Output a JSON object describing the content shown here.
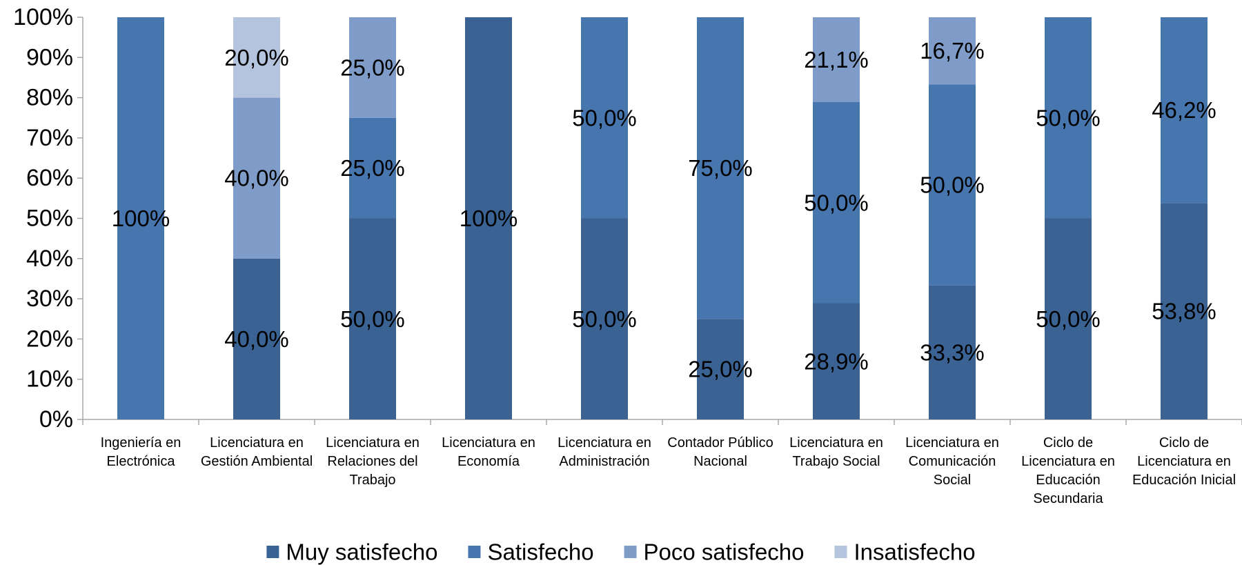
{
  "chart_data": {
    "type": "bar",
    "stacked": true,
    "percent_stacked": true,
    "categories": [
      [
        "Ingeniería en",
        "Electrónica"
      ],
      [
        "Licenciatura en",
        "Gestión Ambiental"
      ],
      [
        "Licenciatura en",
        "Relaciones del",
        "Trabajo"
      ],
      [
        "Licenciatura en",
        "Economía"
      ],
      [
        "Licenciatura en",
        "Administración"
      ],
      [
        "Contador Público",
        "Nacional"
      ],
      [
        "Licenciatura en",
        "Trabajo Social"
      ],
      [
        "Licenciatura en",
        "Comunicación",
        "Social"
      ],
      [
        "Ciclo de",
        "Licenciatura en",
        "Educación",
        "Secundaria"
      ],
      [
        "Ciclo de",
        "Licenciatura en",
        "Educación Inicial"
      ]
    ],
    "series": [
      {
        "name": "Muy satisfecho",
        "color": "#3A6394",
        "values": [
          0,
          40.0,
          50.0,
          100,
          50.0,
          25.0,
          28.9,
          33.3,
          50.0,
          53.8
        ],
        "labels": [
          "",
          "40,0%",
          "50,0%",
          "100%",
          "50,0%",
          "25,0%",
          "28,9%",
          "33,3%",
          "50,0%",
          "53,8%"
        ]
      },
      {
        "name": "Satisfecho",
        "color": "#4775AD",
        "values": [
          100,
          0,
          25.0,
          0,
          50.0,
          75.0,
          50.0,
          50.0,
          50.0,
          46.2
        ],
        "labels": [
          "100%",
          "",
          "25,0%",
          "",
          "50,0%",
          "75,0%",
          "50,0%",
          "50,0%",
          "50,0%",
          "46,2%"
        ]
      },
      {
        "name": "Poco satisfecho",
        "color": "#7F9CC9",
        "values": [
          0,
          40.0,
          25.0,
          0,
          0,
          0,
          21.1,
          16.7,
          0,
          0
        ],
        "labels": [
          "",
          "40,0%",
          "25,0%",
          "",
          "",
          "",
          "21,1%",
          "16,7%",
          "",
          ""
        ]
      },
      {
        "name": "Insatisfecho",
        "color": "#B4C3DE",
        "values": [
          0,
          20.0,
          0,
          0,
          0,
          0,
          0,
          0,
          0,
          0
        ],
        "labels": [
          "",
          "20,0%",
          "",
          "",
          "",
          "",
          "",
          "",
          "",
          ""
        ]
      }
    ],
    "y_ticks": [
      "0%",
      "10%",
      "20%",
      "30%",
      "40%",
      "50%",
      "60%",
      "70%",
      "80%",
      "90%",
      "100%"
    ],
    "ylim": [
      0,
      100
    ],
    "grid": false,
    "legend_position": "bottom",
    "axis_color": "#A6A6A6"
  }
}
